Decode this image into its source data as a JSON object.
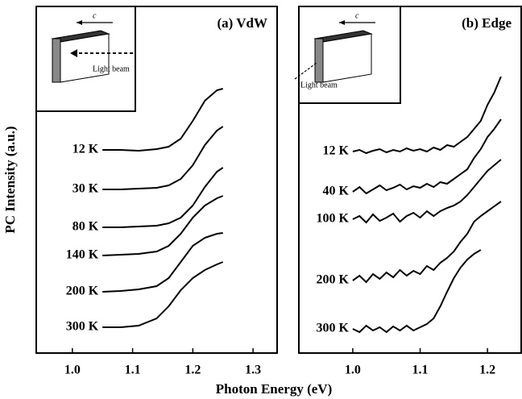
{
  "xlabel": "Photon Energy (eV)",
  "ylabel": "PC Intensity (a.u.)",
  "chart_data": [
    {
      "type": "line",
      "title": "(a) VdW",
      "color": "#000000",
      "inset": {
        "axis_label": "c",
        "beam_label": "Light beam"
      },
      "xlim": [
        0.94,
        1.34
      ],
      "ylim": [
        0,
        43
      ],
      "xticks": [
        {
          "value": 1,
          "label": "1.0"
        },
        1.1,
        1.2,
        1.3
      ],
      "x": [
        1.05,
        1.08,
        1.11,
        1.14,
        1.16,
        1.18,
        1.2,
        1.22,
        1.24,
        1.25
      ],
      "series": [
        {
          "name": "12 K",
          "values": [
            25.2,
            25.2,
            25.1,
            25.3,
            25.6,
            26.6,
            28.8,
            31.3,
            32.6,
            32.8
          ]
        },
        {
          "name": "30 K",
          "values": [
            20.3,
            20.3,
            20.4,
            20.5,
            20.8,
            21.6,
            23.3,
            25.8,
            27.6,
            28.1
          ]
        },
        {
          "name": "80 K",
          "values": [
            15.6,
            15.6,
            15.7,
            15.8,
            16.1,
            16.8,
            18.3,
            20.6,
            22.5,
            23.0
          ]
        },
        {
          "name": "140 K",
          "values": [
            12.1,
            12.2,
            12.3,
            12.6,
            13.3,
            14.8,
            16.8,
            18.3,
            19.2,
            19.5
          ]
        },
        {
          "name": "200 K",
          "values": [
            7.6,
            7.7,
            7.9,
            8.3,
            9.3,
            11.3,
            13.3,
            14.3,
            14.8,
            14.9
          ]
        },
        {
          "name": "300 K",
          "values": [
            3.2,
            3.2,
            3.4,
            4.3,
            5.8,
            7.8,
            9.3,
            10.3,
            11.0,
            11.3
          ]
        }
      ]
    },
    {
      "type": "line",
      "title": "(b) Edge",
      "color": "#000000",
      "inset": {
        "axis_label": "c",
        "beam_label": "Light beam"
      },
      "xlim": [
        0.92,
        1.25
      ],
      "ylim": [
        0,
        43
      ],
      "xticks": [
        {
          "value": 1,
          "label": "1.0"
        },
        1.1,
        1.2
      ],
      "x": [
        1.0,
        1.01,
        1.02,
        1.03,
        1.04,
        1.05,
        1.06,
        1.07,
        1.08,
        1.09,
        1.1,
        1.11,
        1.12,
        1.13,
        1.14,
        1.15,
        1.16,
        1.17,
        1.18,
        1.19,
        1.2,
        1.21,
        1.22
      ],
      "series": [
        {
          "name": "12 K",
          "values": [
            25.0,
            25.2,
            24.8,
            25.1,
            25.3,
            24.9,
            25.2,
            25.0,
            25.4,
            25.1,
            25.3,
            25.0,
            25.5,
            25.2,
            25.8,
            25.6,
            26.2,
            26.8,
            27.8,
            28.8,
            30.8,
            32.3,
            34.3
          ]
        },
        {
          "name": "40 K",
          "values": [
            20.0,
            20.6,
            19.8,
            20.3,
            20.8,
            20.2,
            20.5,
            20.9,
            20.3,
            20.7,
            20.5,
            21.0,
            20.6,
            21.2,
            21.0,
            21.6,
            22.2,
            22.8,
            24.2,
            25.3,
            26.8,
            27.8,
            29.0
          ]
        },
        {
          "name": "100 K",
          "values": [
            16.6,
            17.0,
            16.2,
            17.2,
            16.4,
            16.8,
            17.3,
            16.3,
            17.0,
            17.4,
            16.8,
            17.6,
            17.0,
            17.6,
            18.0,
            18.3,
            18.8,
            19.6,
            20.6,
            21.6,
            22.6,
            23.3,
            24.0
          ]
        },
        {
          "name": "200 K",
          "values": [
            9.0,
            9.6,
            8.8,
            9.8,
            9.2,
            10.0,
            9.4,
            10.3,
            9.6,
            10.2,
            9.8,
            10.8,
            10.3,
            11.2,
            11.8,
            12.6,
            13.8,
            14.8,
            16.3,
            17.0,
            17.6,
            18.2,
            18.8
          ]
        },
        {
          "name": "300 K",
          "values": [
            3.0,
            2.6,
            3.4,
            2.8,
            3.2,
            2.6,
            3.3,
            2.8,
            3.4,
            2.8,
            3.2,
            3.6,
            4.3,
            5.8,
            7.6,
            9.3,
            10.6,
            11.6,
            12.3,
            12.8,
            null,
            null,
            null
          ]
        }
      ]
    }
  ]
}
